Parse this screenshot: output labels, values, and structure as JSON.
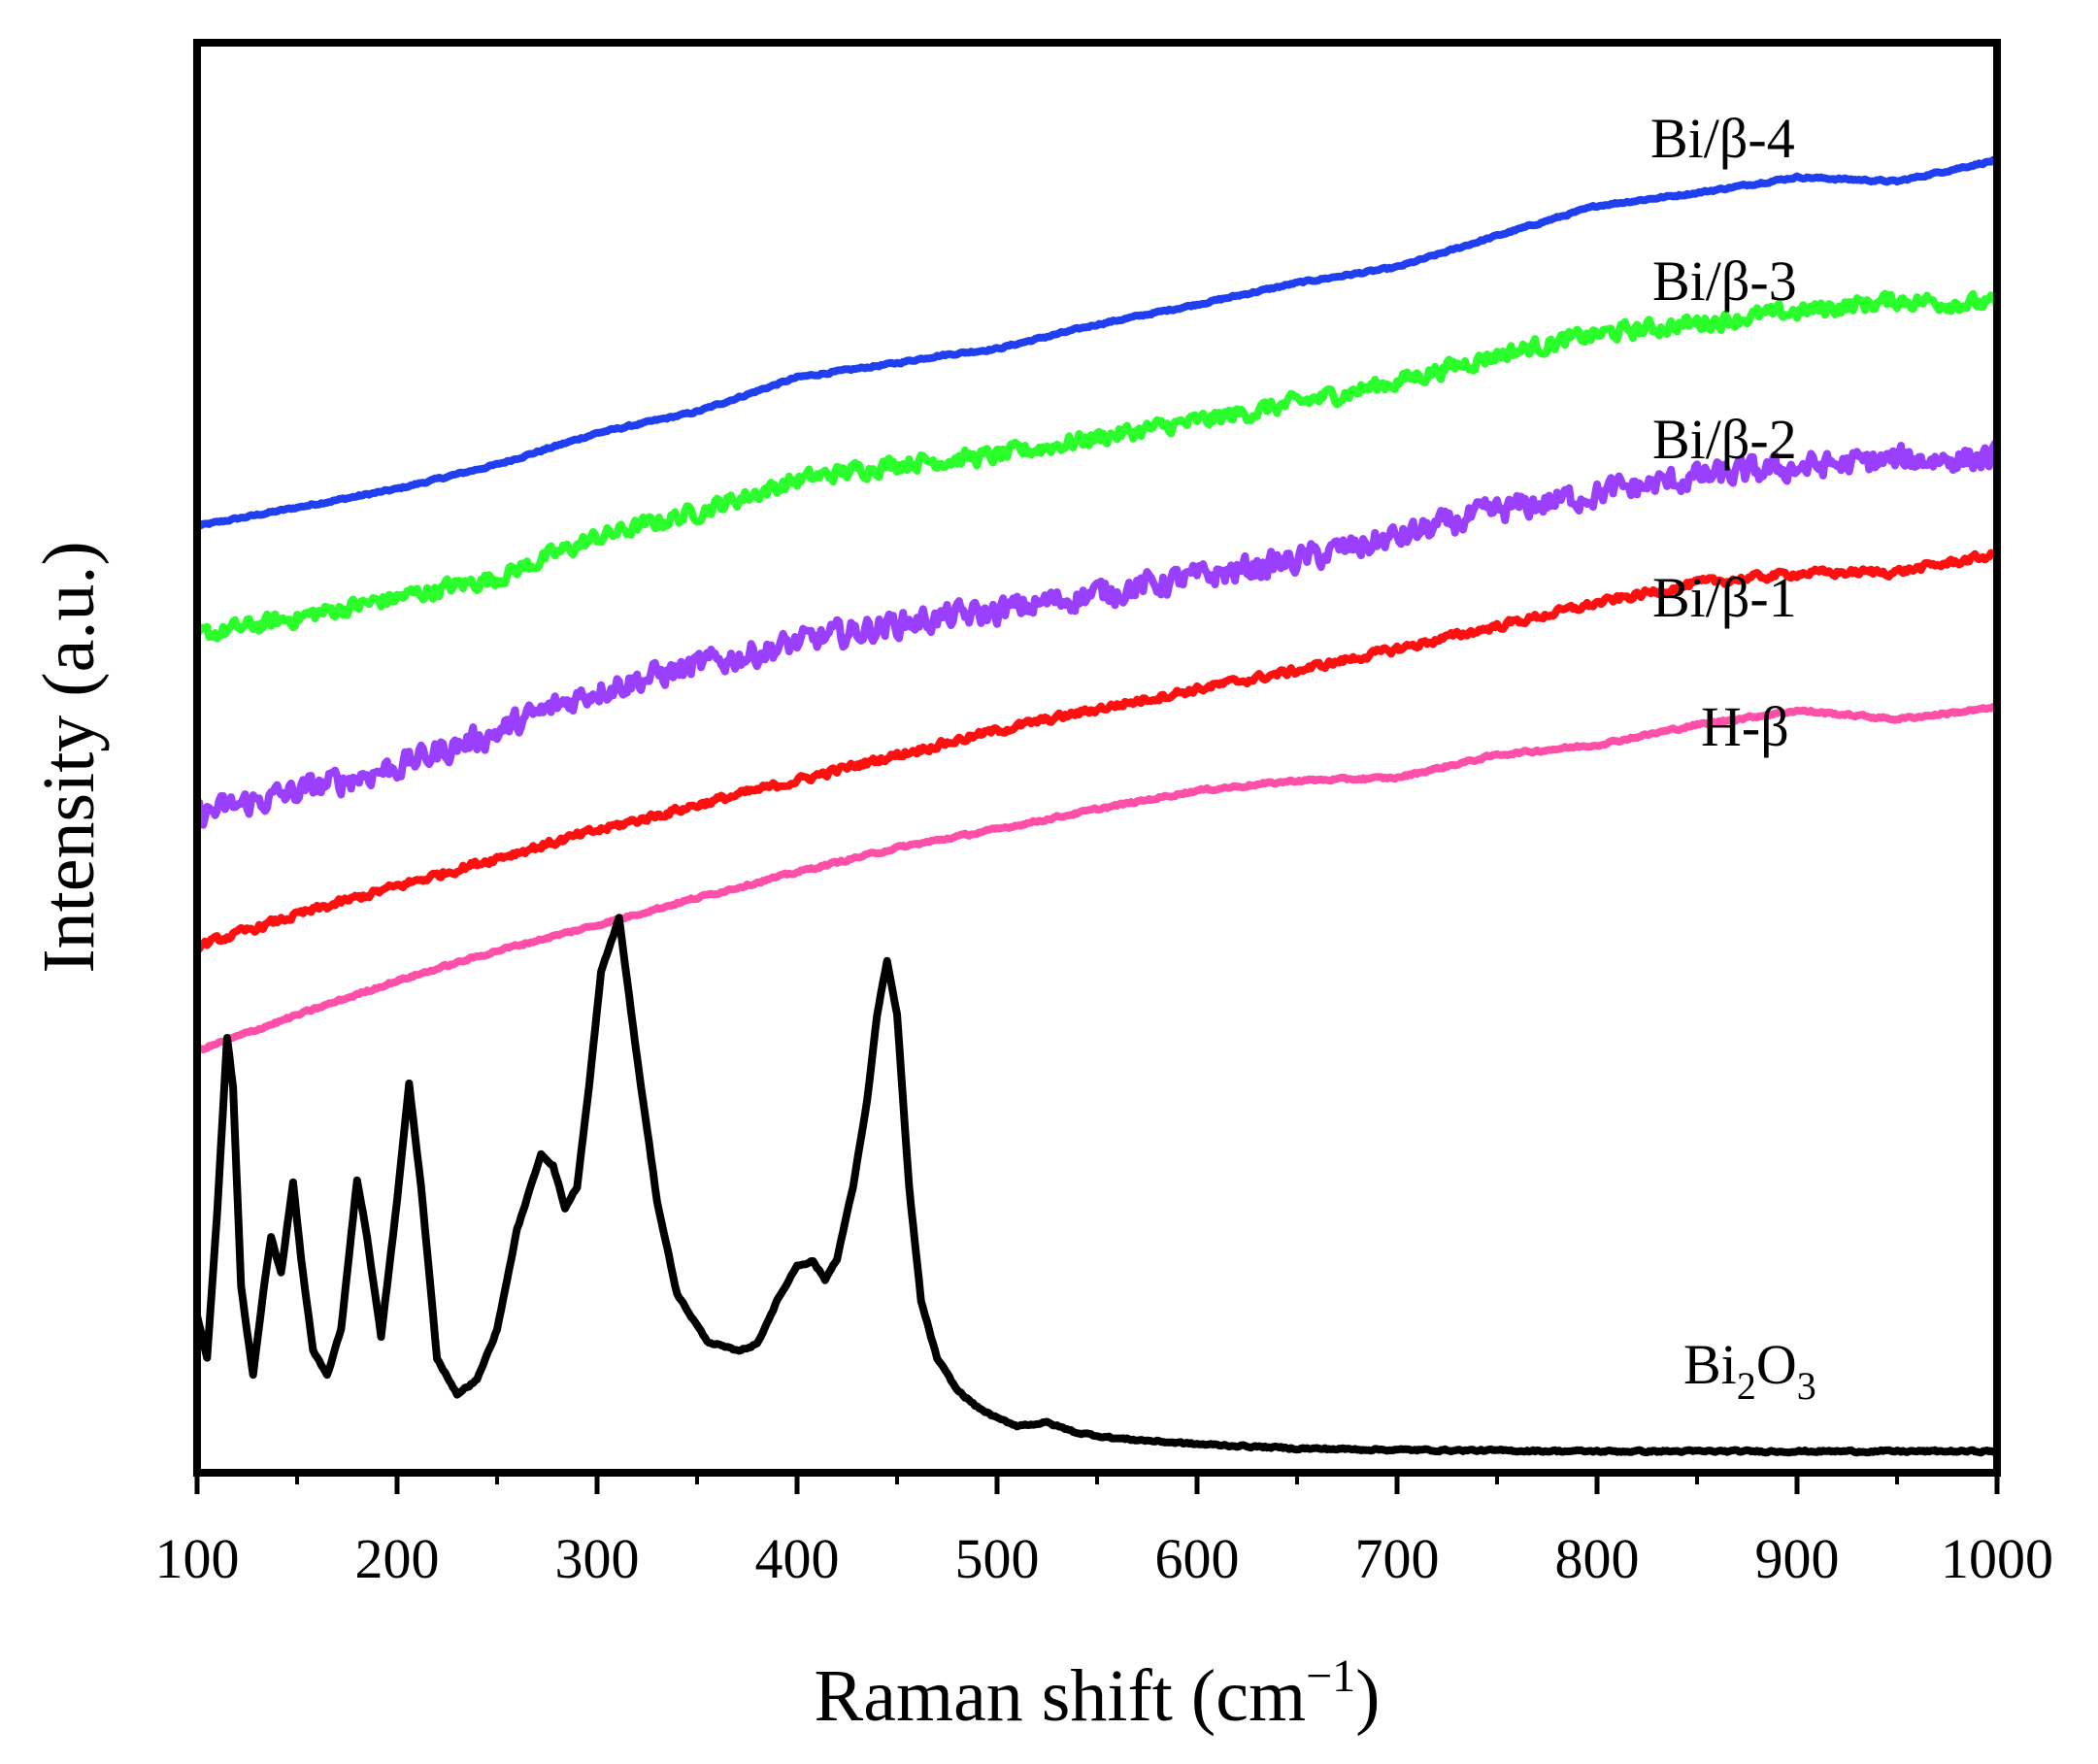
{
  "chart_data": {
    "type": "line",
    "title": "",
    "xlabel": {
      "main": "Raman shift (cm",
      "sup": "−1",
      "close": ")"
    },
    "ylabel": "Intensity (a.u.)",
    "xlim": [
      100,
      1000
    ],
    "ylim": [
      0,
      100
    ],
    "y_ticks_shown": false,
    "x_ticks": [
      100,
      200,
      300,
      400,
      500,
      600,
      700,
      800,
      900,
      1000
    ],
    "x_tick_labels": [
      "100",
      "200",
      "300",
      "400",
      "500",
      "600",
      "700",
      "800",
      "900",
      "1000"
    ],
    "series": [
      {
        "name": "Bi/β-4",
        "color": "#1f3ff0",
        "noise": 0.12,
        "x": [
          100,
          150,
          200,
          250,
          300,
          350,
          400,
          450,
          470,
          500,
          550,
          600,
          650,
          700,
          750,
          800,
          850,
          900,
          950,
          1000
        ],
        "y": [
          66.2,
          67.5,
          68.8,
          70.5,
          72.7,
          74.2,
          76.6,
          77.6,
          78.1,
          78.6,
          80.3,
          81.7,
          83.2,
          84.3,
          86.5,
          88.6,
          89.5,
          90.6,
          90.3,
          91.8
        ]
      },
      {
        "name": "Bi/β-3",
        "color": "#2bff2b",
        "noise": 0.9,
        "x": [
          100,
          150,
          200,
          250,
          300,
          350,
          400,
          450,
          500,
          550,
          600,
          650,
          700,
          750,
          800,
          850,
          900,
          950,
          1000
        ],
        "y": [
          58.5,
          59.8,
          61.2,
          62.6,
          65.4,
          67.2,
          69.4,
          70.6,
          71.1,
          72.4,
          73.5,
          74.8,
          76.3,
          78.2,
          79.6,
          80.4,
          81.2,
          82.0,
          81.7
        ]
      },
      {
        "name": "Bi/β-2",
        "color": "#9b3fff",
        "noise": 1.4,
        "x": [
          100,
          150,
          200,
          250,
          300,
          350,
          400,
          450,
          500,
          550,
          600,
          650,
          700,
          750,
          800,
          850,
          900,
          950,
          1000
        ],
        "y": [
          46.0,
          47.6,
          49.4,
          51.8,
          54.8,
          56.4,
          58.0,
          59.4,
          60.2,
          61.5,
          62.6,
          63.8,
          65.4,
          67.2,
          68.5,
          69.6,
          70.3,
          70.8,
          71.0
        ]
      },
      {
        "name": "Bi/β-1",
        "color": "#ff1010",
        "noise": 0.4,
        "x": [
          100,
          150,
          200,
          250,
          300,
          350,
          400,
          450,
          500,
          550,
          600,
          650,
          700,
          750,
          800,
          850,
          900,
          950,
          1000
        ],
        "y": [
          36.8,
          39.0,
          41.0,
          43.0,
          44.9,
          46.7,
          48.4,
          50.2,
          51.9,
          53.4,
          54.8,
          56.1,
          57.6,
          59.2,
          60.8,
          62.2,
          62.9,
          63.0,
          64.2
        ]
      },
      {
        "name": "H-β",
        "color": "#ff4fa8",
        "noise": 0.15,
        "x": [
          100,
          150,
          200,
          250,
          300,
          350,
          400,
          450,
          500,
          550,
          600,
          650,
          700,
          750,
          800,
          850,
          900,
          950,
          1000
        ],
        "y": [
          29.5,
          32.0,
          34.4,
          36.5,
          38.3,
          40.2,
          42.0,
          43.7,
          45.0,
          46.4,
          47.7,
          48.4,
          48.6,
          50.2,
          50.9,
          52.3,
          53.3,
          52.7,
          53.5
        ]
      },
      {
        "name": "Bi₂O₃",
        "color": "#000000",
        "noise": 0.12,
        "x": [
          100,
          105,
          110,
          115,
          118,
          122,
          128,
          133,
          137,
          142,
          148,
          152,
          158,
          165,
          172,
          180,
          185,
          192,
          200,
          206,
          212,
          220,
          230,
          240,
          250,
          260,
          268,
          272,
          278,
          284,
          290,
          296,
          302,
          311,
          320,
          330,
          340,
          355,
          370,
          380,
          390,
          400,
          408,
          414,
          420,
          428,
          435,
          440,
          445,
          450,
          456,
          462,
          470,
          480,
          490,
          500,
          510,
          525,
          540,
          560,
          600,
          650,
          700,
          800,
          900,
          1000
        ],
        "y": [
          11.0,
          8.0,
          18.0,
          30.5,
          27.0,
          13.0,
          6.8,
          12.5,
          16.5,
          14.0,
          20.3,
          15.0,
          8.5,
          6.8,
          10.0,
          20.5,
          16.5,
          9.5,
          19.0,
          27.2,
          20.0,
          8.0,
          5.5,
          6.5,
          10.0,
          17.0,
          20.5,
          22.3,
          21.5,
          18.5,
          20.0,
          27.0,
          35.0,
          38.8,
          29.0,
          19.0,
          12.5,
          9.2,
          8.5,
          9.0,
          12.0,
          14.5,
          14.8,
          13.5,
          15.0,
          20.0,
          26.0,
          32.0,
          35.8,
          32.0,
          20.0,
          12.0,
          8.0,
          5.8,
          4.6,
          3.8,
          3.3,
          3.5,
          2.8,
          2.4,
          2.0,
          1.7,
          1.6,
          1.5,
          1.5,
          1.5
        ]
      }
    ]
  },
  "labels": {
    "bi_beta_4": "Bi/β-4",
    "bi_beta_3": "Bi/β-3",
    "bi_beta_2": "Bi/β-2",
    "bi_beta_1": "Bi/β-1",
    "h_beta": "H-β",
    "bi2o3": {
      "a": "Bi",
      "b": "2",
      "c": "O",
      "d": "3"
    }
  }
}
